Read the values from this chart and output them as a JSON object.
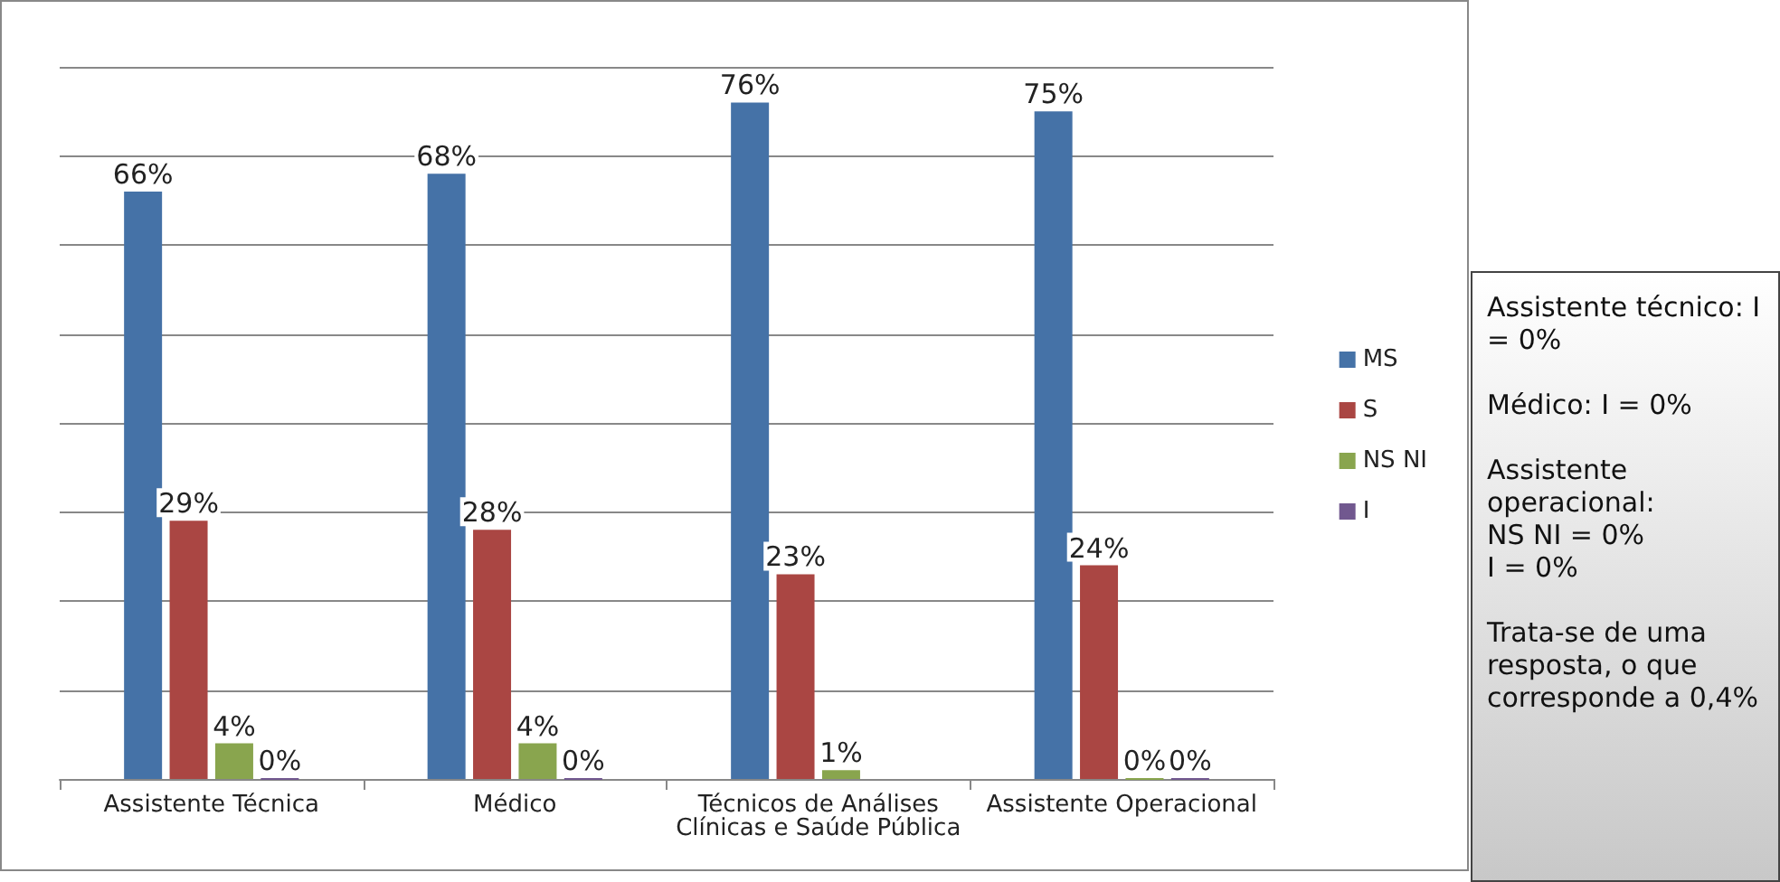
{
  "chart_data": {
    "type": "bar",
    "categories": [
      "Assistente Técnica",
      "Médico",
      "Técnicos de Análises\nClínicas e Saúde Pública",
      "Assistente Operacional"
    ],
    "series": [
      {
        "name": "MS",
        "color": "#4572a7",
        "values": [
          66,
          68,
          76,
          75
        ],
        "value_labels": [
          "66%",
          "68%",
          "76%",
          "75%"
        ]
      },
      {
        "name": "S",
        "color": "#aa4643",
        "values": [
          29,
          28,
          23,
          24
        ],
        "value_labels": [
          "29%",
          "28%",
          "23%",
          "24%"
        ]
      },
      {
        "name": "NS NI",
        "color": "#89a54e",
        "values": [
          4,
          4,
          1,
          0
        ],
        "value_labels": [
          "4%",
          "4%",
          "1%",
          "0%"
        ]
      },
      {
        "name": "I",
        "color": "#71588f",
        "values": [
          0,
          0,
          null,
          0
        ],
        "value_labels": [
          "0%",
          "0%",
          null,
          "0%"
        ]
      }
    ],
    "ylim": [
      0,
      80
    ],
    "yticks": [
      {
        "value": 0,
        "label": null
      },
      {
        "value": 10,
        "label": null
      },
      {
        "value": 20,
        "label": null
      },
      {
        "value": 30,
        "label": null
      },
      {
        "value": 40,
        "label": null
      },
      {
        "value": 50,
        "label": null
      },
      {
        "value": 60,
        "label": null
      },
      {
        "value": 70,
        "label": null
      },
      {
        "value": 80,
        "label": null
      }
    ],
    "tick_labels": "x",
    "grid": "y",
    "legend": "right",
    "annotations": [
      "Assistente técnico: I = 0%",
      "Médico: I = 0%",
      "Assistente operacional:\nNS NI = 0%\nI = 0%",
      "Trata-se de uma resposta, o que corresponde a 0,4%"
    ]
  }
}
